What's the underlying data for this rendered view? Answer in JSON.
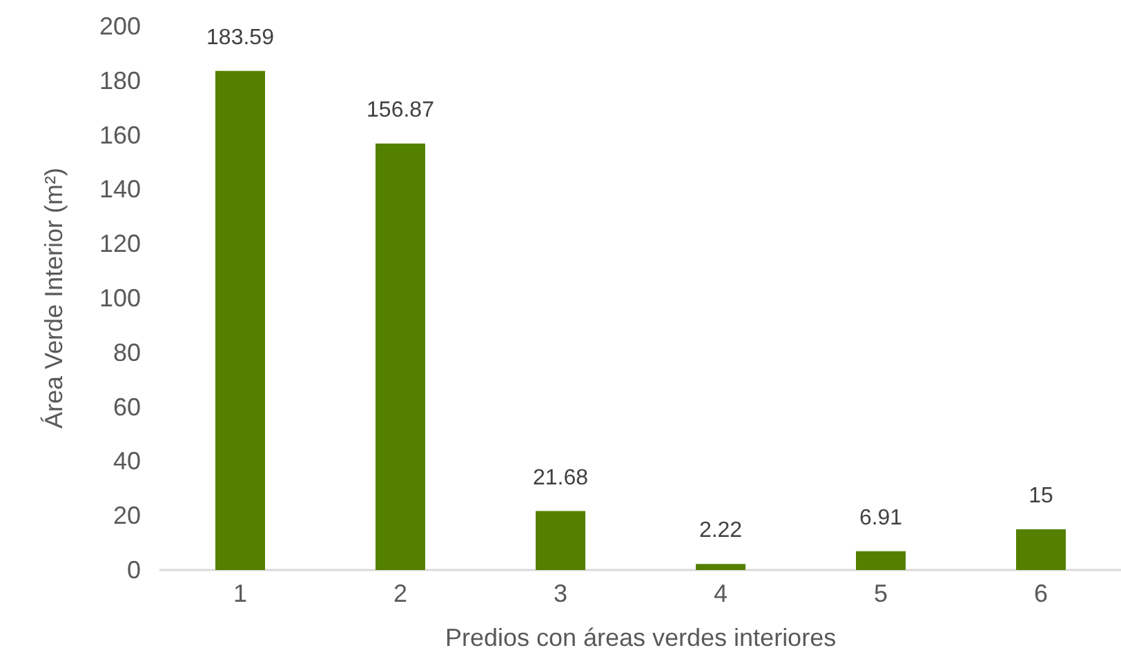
{
  "chart_data": {
    "type": "bar",
    "xlabel": "Predios con áreas verdes interiores",
    "ylabel": "Área Verde Interior (m²)",
    "categories": [
      "1",
      "2",
      "3",
      "4",
      "5",
      "6"
    ],
    "values": [
      183.59,
      156.87,
      21.68,
      2.22,
      6.91,
      15
    ],
    "color": "#548000",
    "ylim": [
      0,
      200
    ],
    "yticks": [
      0,
      20,
      40,
      60,
      80,
      100,
      120,
      140,
      160,
      180,
      200
    ],
    "grid": false,
    "data_labels": true
  }
}
